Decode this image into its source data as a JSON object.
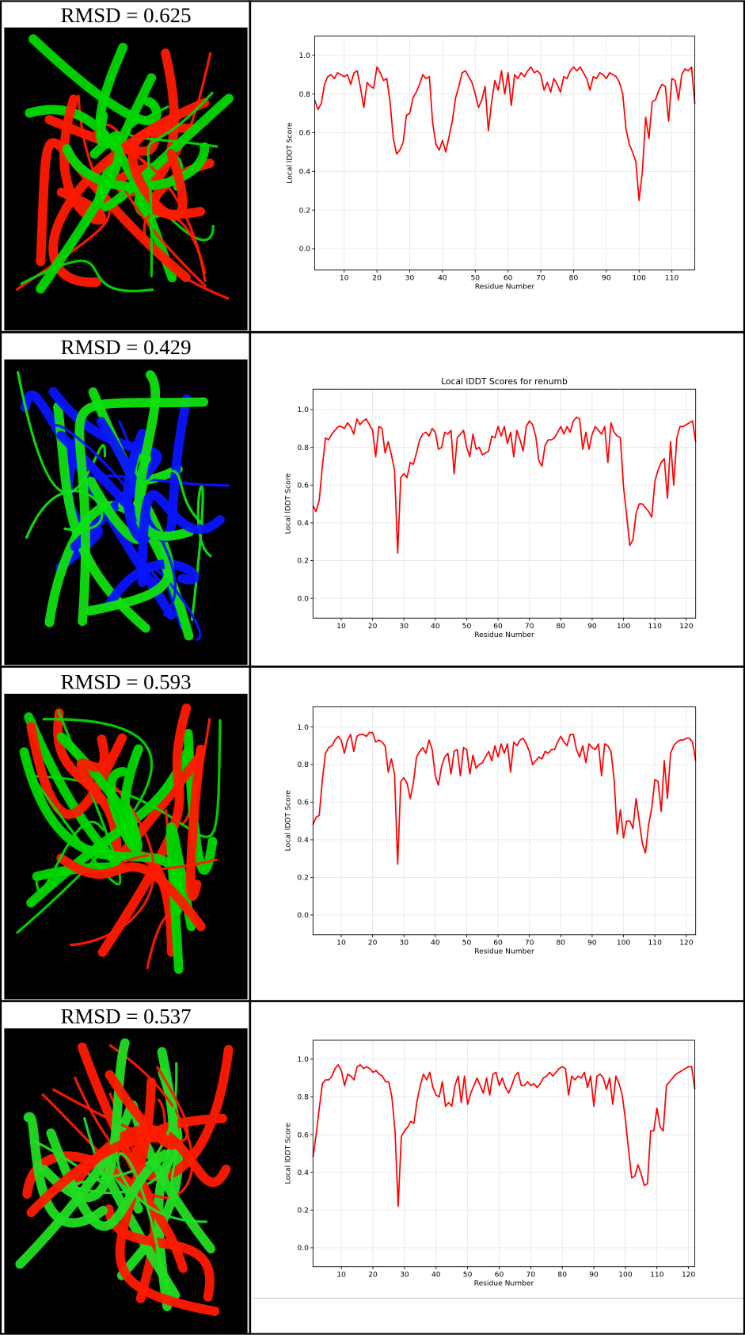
{
  "structure_labels": [
    "RMSD = 0.625",
    "RMSD = 0.429",
    "RMSD = 0.593",
    "RMSD = 0.537"
  ],
  "chart_data": [
    {
      "type": "line",
      "color": "#ff0000",
      "grid": true,
      "xlabel": "Residue Number",
      "ylabel": "Local lDDT Score",
      "xlim": [
        1,
        117
      ],
      "ylim": [
        -0.11,
        1.1
      ],
      "xticks": [
        10,
        20,
        30,
        40,
        50,
        60,
        70,
        80,
        90,
        100,
        110
      ],
      "yticks": [
        {
          "value": 0,
          "label": "0.0"
        },
        0.2,
        0.4,
        0.6,
        0.8,
        {
          "value": 1,
          "label": "1.0"
        }
      ],
      "x": [
        1,
        2,
        3,
        4,
        5,
        6,
        7,
        8,
        9,
        10,
        11,
        12,
        13,
        14,
        15,
        16,
        17,
        18,
        19,
        20,
        21,
        22,
        23,
        24,
        25,
        26,
        27,
        28,
        29,
        30,
        31,
        32,
        33,
        34,
        35,
        36,
        37,
        38,
        39,
        40,
        41,
        42,
        43,
        44,
        45,
        46,
        47,
        48,
        49,
        50,
        51,
        52,
        53,
        54,
        55,
        56,
        57,
        58,
        59,
        60,
        61,
        62,
        63,
        64,
        65,
        66,
        67,
        68,
        69,
        70,
        71,
        72,
        73,
        74,
        75,
        76,
        77,
        78,
        79,
        80,
        81,
        82,
        83,
        84,
        85,
        86,
        87,
        88,
        89,
        90,
        91,
        92,
        93,
        94,
        95,
        96,
        97,
        98,
        99,
        100,
        101,
        102,
        103,
        104,
        105,
        106,
        107,
        108,
        109,
        110,
        111,
        112,
        113,
        114,
        115,
        116,
        117
      ],
      "values": [
        0.77,
        0.72,
        0.75,
        0.85,
        0.89,
        0.9,
        0.88,
        0.91,
        0.9,
        0.89,
        0.9,
        0.85,
        0.91,
        0.92,
        0.83,
        0.73,
        0.86,
        0.84,
        0.83,
        0.94,
        0.91,
        0.87,
        0.88,
        0.76,
        0.57,
        0.49,
        0.51,
        0.55,
        0.69,
        0.7,
        0.78,
        0.81,
        0.85,
        0.9,
        0.88,
        0.89,
        0.65,
        0.54,
        0.51,
        0.56,
        0.5,
        0.58,
        0.66,
        0.78,
        0.84,
        0.91,
        0.92,
        0.89,
        0.86,
        0.8,
        0.73,
        0.77,
        0.84,
        0.61,
        0.76,
        0.87,
        0.82,
        0.92,
        0.8,
        0.91,
        0.74,
        0.9,
        0.88,
        0.91,
        0.89,
        0.92,
        0.94,
        0.91,
        0.92,
        0.9,
        0.82,
        0.86,
        0.81,
        0.88,
        0.85,
        0.81,
        0.89,
        0.88,
        0.92,
        0.94,
        0.92,
        0.94,
        0.91,
        0.88,
        0.82,
        0.89,
        0.88,
        0.91,
        0.9,
        0.88,
        0.91,
        0.9,
        0.89,
        0.86,
        0.8,
        0.62,
        0.54,
        0.5,
        0.45,
        0.25,
        0.4,
        0.68,
        0.57,
        0.76,
        0.77,
        0.82,
        0.85,
        0.84,
        0.66,
        0.88,
        0.87,
        0.77,
        0.9,
        0.93,
        0.92,
        0.94,
        0.75
      ]
    },
    {
      "type": "line",
      "color": "#ff0000",
      "grid": true,
      "title": "Local lDDT Scores for renumb",
      "xlabel": "Residue Number",
      "ylabel": "Local lDDT Score",
      "xlim": [
        1,
        123
      ],
      "ylim": [
        -0.105,
        1.108
      ],
      "xticks": [
        10,
        20,
        30,
        40,
        50,
        60,
        70,
        80,
        90,
        100,
        110,
        120
      ],
      "yticks": [
        {
          "value": 0,
          "label": "0.0"
        },
        0.2,
        0.4,
        0.6,
        0.8,
        {
          "value": 1,
          "label": "1.0"
        }
      ],
      "x": [
        1,
        2,
        3,
        4,
        5,
        6,
        7,
        8,
        9,
        10,
        11,
        12,
        13,
        14,
        15,
        16,
        17,
        18,
        19,
        20,
        21,
        22,
        23,
        24,
        25,
        26,
        27,
        28,
        29,
        30,
        31,
        32,
        33,
        34,
        35,
        36,
        37,
        38,
        39,
        40,
        41,
        42,
        43,
        44,
        45,
        46,
        47,
        48,
        49,
        50,
        51,
        52,
        53,
        54,
        55,
        56,
        57,
        58,
        59,
        60,
        61,
        62,
        63,
        64,
        65,
        66,
        67,
        68,
        69,
        70,
        71,
        72,
        73,
        74,
        75,
        76,
        77,
        78,
        79,
        80,
        81,
        82,
        83,
        84,
        85,
        86,
        87,
        88,
        89,
        90,
        91,
        92,
        93,
        94,
        95,
        96,
        97,
        98,
        99,
        100,
        101,
        102,
        103,
        104,
        105,
        106,
        107,
        108,
        109,
        110,
        111,
        112,
        113,
        114,
        115,
        116,
        117,
        118,
        119,
        120,
        121,
        122,
        123
      ],
      "values": [
        0.49,
        0.46,
        0.52,
        0.7,
        0.85,
        0.84,
        0.87,
        0.89,
        0.91,
        0.91,
        0.9,
        0.93,
        0.91,
        0.87,
        0.95,
        0.92,
        0.94,
        0.95,
        0.92,
        0.89,
        0.75,
        0.91,
        0.9,
        0.77,
        0.83,
        0.76,
        0.68,
        0.24,
        0.64,
        0.66,
        0.64,
        0.72,
        0.71,
        0.77,
        0.84,
        0.87,
        0.88,
        0.86,
        0.9,
        0.88,
        0.79,
        0.8,
        0.88,
        0.87,
        0.89,
        0.66,
        0.85,
        0.87,
        0.89,
        0.8,
        0.75,
        0.87,
        0.79,
        0.8,
        0.76,
        0.77,
        0.78,
        0.86,
        0.85,
        0.91,
        0.86,
        0.91,
        0.82,
        0.88,
        0.75,
        0.89,
        0.84,
        0.78,
        0.91,
        0.94,
        0.92,
        0.86,
        0.73,
        0.7,
        0.81,
        0.84,
        0.84,
        0.85,
        0.88,
        0.91,
        0.87,
        0.91,
        0.88,
        0.94,
        0.96,
        0.95,
        0.79,
        0.88,
        0.79,
        0.87,
        0.91,
        0.89,
        0.87,
        0.91,
        0.72,
        0.93,
        0.88,
        0.86,
        0.85,
        0.59,
        0.44,
        0.28,
        0.31,
        0.45,
        0.5,
        0.5,
        0.48,
        0.46,
        0.43,
        0.62,
        0.68,
        0.72,
        0.74,
        0.53,
        0.83,
        0.6,
        0.85,
        0.91,
        0.91,
        0.92,
        0.93,
        0.94,
        0.83
      ]
    },
    {
      "type": "line",
      "color": "#ff0000",
      "grid": true,
      "xlabel": "Residue Number",
      "ylabel": "Local lDDT Score",
      "xlim": [
        1,
        123
      ],
      "ylim": [
        -0.105,
        1.108
      ],
      "xticks": [
        10,
        20,
        30,
        40,
        50,
        60,
        70,
        80,
        90,
        100,
        110,
        120
      ],
      "yticks": [
        {
          "value": 0,
          "label": "0.0"
        },
        0.2,
        0.4,
        0.6,
        0.8,
        {
          "value": 1,
          "label": "1.0"
        }
      ],
      "x": [
        1,
        2,
        3,
        4,
        5,
        6,
        7,
        8,
        9,
        10,
        11,
        12,
        13,
        14,
        15,
        16,
        17,
        18,
        19,
        20,
        21,
        22,
        23,
        24,
        25,
        26,
        27,
        28,
        29,
        30,
        31,
        32,
        33,
        34,
        35,
        36,
        37,
        38,
        39,
        40,
        41,
        42,
        43,
        44,
        45,
        46,
        47,
        48,
        49,
        50,
        51,
        52,
        53,
        54,
        55,
        56,
        57,
        58,
        59,
        60,
        61,
        62,
        63,
        64,
        65,
        66,
        67,
        68,
        69,
        70,
        71,
        72,
        73,
        74,
        75,
        76,
        77,
        78,
        79,
        80,
        81,
        82,
        83,
        84,
        85,
        86,
        87,
        88,
        89,
        90,
        91,
        92,
        93,
        94,
        95,
        96,
        97,
        98,
        99,
        100,
        101,
        102,
        103,
        104,
        105,
        106,
        107,
        108,
        109,
        110,
        111,
        112,
        113,
        114,
        115,
        116,
        117,
        118,
        119,
        120,
        121,
        122,
        123
      ],
      "values": [
        0.48,
        0.52,
        0.53,
        0.72,
        0.86,
        0.89,
        0.9,
        0.93,
        0.95,
        0.93,
        0.86,
        0.93,
        0.96,
        0.87,
        0.95,
        0.96,
        0.96,
        0.95,
        0.97,
        0.97,
        0.92,
        0.93,
        0.92,
        0.9,
        0.76,
        0.83,
        0.75,
        0.27,
        0.71,
        0.73,
        0.7,
        0.62,
        0.7,
        0.84,
        0.87,
        0.89,
        0.86,
        0.93,
        0.88,
        0.74,
        0.69,
        0.79,
        0.84,
        0.86,
        0.75,
        0.87,
        0.88,
        0.74,
        0.89,
        0.88,
        0.75,
        0.85,
        0.78,
        0.8,
        0.81,
        0.84,
        0.87,
        0.82,
        0.9,
        0.84,
        0.91,
        0.86,
        0.91,
        0.76,
        0.92,
        0.9,
        0.93,
        0.94,
        0.91,
        0.87,
        0.8,
        0.82,
        0.84,
        0.83,
        0.87,
        0.86,
        0.88,
        0.88,
        0.92,
        0.95,
        0.92,
        0.9,
        0.96,
        0.96,
        0.88,
        0.84,
        0.9,
        0.81,
        0.91,
        0.89,
        0.88,
        0.91,
        0.74,
        0.91,
        0.9,
        0.87,
        0.72,
        0.43,
        0.56,
        0.41,
        0.5,
        0.5,
        0.46,
        0.62,
        0.5,
        0.38,
        0.33,
        0.48,
        0.57,
        0.72,
        0.71,
        0.55,
        0.82,
        0.62,
        0.86,
        0.9,
        0.92,
        0.93,
        0.93,
        0.94,
        0.94,
        0.92,
        0.82
      ]
    },
    {
      "type": "line",
      "color": "#ff0000",
      "grid": true,
      "xlabel": "Residue Number",
      "ylabel": "Local lDDT Score",
      "xlim": [
        1,
        122
      ],
      "ylim": [
        -0.1,
        1.1
      ],
      "xticks": [
        10,
        20,
        30,
        40,
        50,
        60,
        70,
        80,
        90,
        100,
        110,
        120
      ],
      "yticks": [
        {
          "value": 0,
          "label": "0.0"
        },
        0.2,
        0.4,
        0.6,
        0.8,
        {
          "value": 1,
          "label": "1.0"
        }
      ],
      "x": [
        1,
        2,
        3,
        4,
        5,
        6,
        7,
        8,
        9,
        10,
        11,
        12,
        13,
        14,
        15,
        16,
        17,
        18,
        19,
        20,
        21,
        22,
        23,
        24,
        25,
        26,
        27,
        28,
        29,
        30,
        31,
        32,
        33,
        34,
        35,
        36,
        37,
        38,
        39,
        40,
        41,
        42,
        43,
        44,
        45,
        46,
        47,
        48,
        49,
        50,
        51,
        52,
        53,
        54,
        55,
        56,
        57,
        58,
        59,
        60,
        61,
        62,
        63,
        64,
        65,
        66,
        67,
        68,
        69,
        70,
        71,
        72,
        73,
        74,
        75,
        76,
        77,
        78,
        79,
        80,
        81,
        82,
        83,
        84,
        85,
        86,
        87,
        88,
        89,
        90,
        91,
        92,
        93,
        94,
        95,
        96,
        97,
        98,
        99,
        100,
        101,
        102,
        103,
        104,
        105,
        106,
        107,
        108,
        109,
        110,
        111,
        112,
        113,
        114,
        115,
        116,
        117,
        118,
        119,
        120,
        121,
        122
      ],
      "values": [
        0.48,
        0.6,
        0.74,
        0.87,
        0.89,
        0.89,
        0.91,
        0.95,
        0.97,
        0.94,
        0.86,
        0.92,
        0.91,
        0.89,
        0.96,
        0.97,
        0.95,
        0.96,
        0.95,
        0.93,
        0.94,
        0.92,
        0.91,
        0.88,
        0.88,
        0.8,
        0.62,
        0.22,
        0.59,
        0.62,
        0.64,
        0.67,
        0.66,
        0.78,
        0.86,
        0.92,
        0.89,
        0.93,
        0.85,
        0.81,
        0.8,
        0.88,
        0.75,
        0.77,
        0.75,
        0.86,
        0.91,
        0.77,
        0.91,
        0.76,
        0.82,
        0.86,
        0.9,
        0.86,
        0.82,
        0.9,
        0.81,
        0.92,
        0.93,
        0.86,
        0.9,
        0.85,
        0.82,
        0.86,
        0.91,
        0.93,
        0.86,
        0.86,
        0.88,
        0.86,
        0.87,
        0.85,
        0.87,
        0.9,
        0.91,
        0.93,
        0.91,
        0.93,
        0.95,
        0.96,
        0.95,
        0.81,
        0.91,
        0.89,
        0.91,
        0.9,
        0.93,
        0.85,
        0.91,
        0.75,
        0.91,
        0.92,
        0.9,
        0.84,
        0.9,
        0.76,
        0.91,
        0.87,
        0.81,
        0.68,
        0.52,
        0.37,
        0.38,
        0.44,
        0.39,
        0.33,
        0.34,
        0.62,
        0.62,
        0.74,
        0.64,
        0.62,
        0.86,
        0.88,
        0.9,
        0.92,
        0.93,
        0.94,
        0.95,
        0.96,
        0.96,
        0.84
      ]
    }
  ]
}
